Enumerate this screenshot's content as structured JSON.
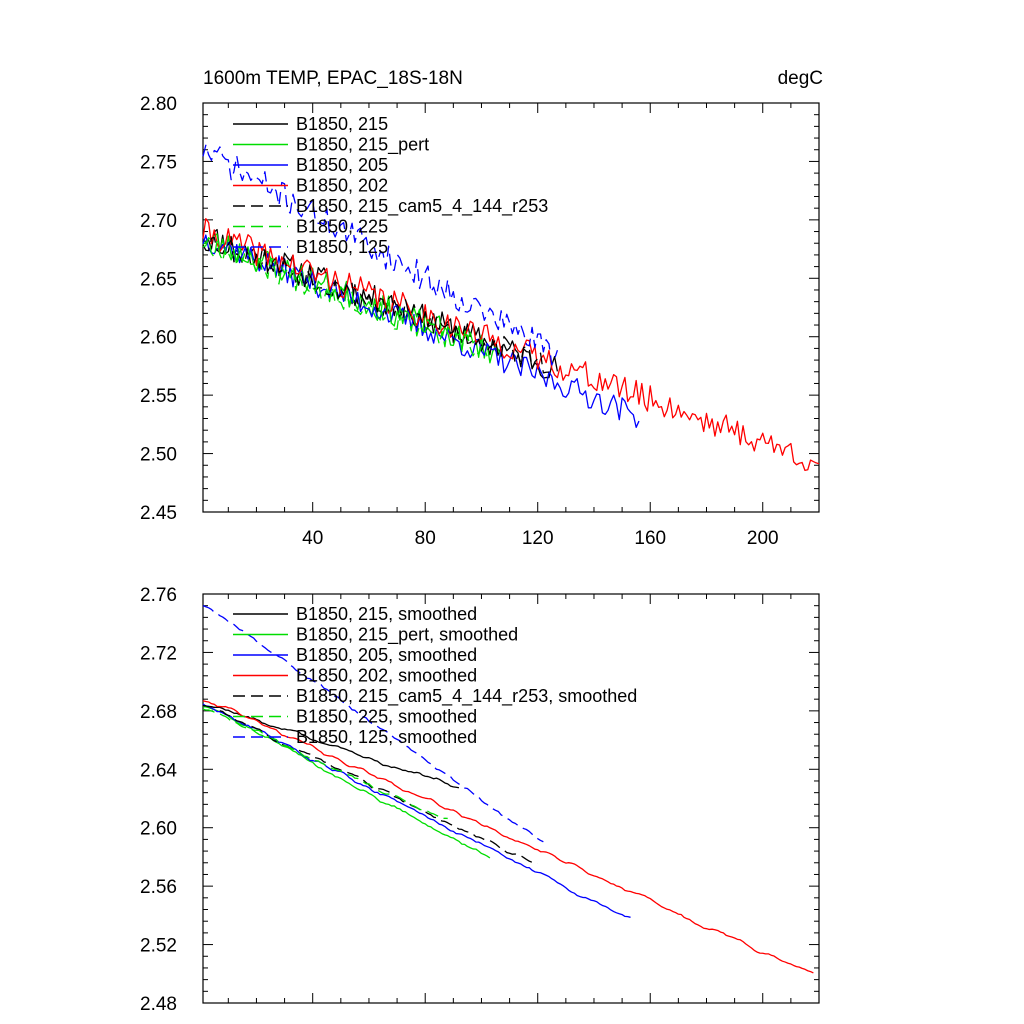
{
  "chart_data": [
    {
      "type": "line",
      "title": "1600m TEMP, EPAC_18S-18N",
      "units": "degC",
      "xlabel": "",
      "ylabel": "",
      "xlim": [
        1,
        220
      ],
      "ylim": [
        2.45,
        2.8
      ],
      "x_ticks": [
        "40",
        "80",
        "120",
        "160",
        "200"
      ],
      "y_ticks": [
        "2.45",
        "2.50",
        "2.55",
        "2.60",
        "2.65",
        "2.70",
        "2.75",
        "2.80"
      ],
      "legend_position": "top-left",
      "series": [
        {
          "name": "B1850, 215",
          "color": "#000000",
          "dash": "solid",
          "start": 2.688,
          "end": 2.572,
          "length": 127,
          "noise": 0.012,
          "seed": 11
        },
        {
          "name": "B1850, 215_pert",
          "color": "#00dd00",
          "dash": "solid",
          "start": 2.685,
          "end": 2.585,
          "length": 107,
          "noise": 0.012,
          "seed": 23
        },
        {
          "name": "B1850, 205",
          "color": "#0000ff",
          "dash": "solid",
          "start": 2.685,
          "end": 2.532,
          "length": 156,
          "noise": 0.011,
          "seed": 37
        },
        {
          "name": "B1850, 202",
          "color": "#ff0000",
          "dash": "solid",
          "start": 2.69,
          "end": 2.492,
          "length": 220,
          "noise": 0.012,
          "seed": 41
        },
        {
          "name": "B1850, 215_cam5_4_144_r253",
          "color": "#000000",
          "dash": "dashed",
          "start": 2.684,
          "end": 2.576,
          "length": 124,
          "noise": 0.011,
          "seed": 53
        },
        {
          "name": "B1850, 225",
          "color": "#00dd00",
          "dash": "dashed",
          "start": 2.682,
          "end": 2.585,
          "length": 102,
          "noise": 0.011,
          "seed": 67
        },
        {
          "name": "B1850, 125",
          "color": "#0000ff",
          "dash": "dashed",
          "start": 2.76,
          "end": 2.585,
          "length": 127,
          "noise": 0.012,
          "seed": 71
        }
      ]
    },
    {
      "type": "line",
      "title": "",
      "xlabel": "",
      "ylabel": "",
      "xlim": [
        1,
        220
      ],
      "ylim": [
        2.48,
        2.76
      ],
      "y_ticks": [
        "2.48",
        "2.52",
        "2.56",
        "2.60",
        "2.64",
        "2.68",
        "2.72",
        "2.76"
      ],
      "legend_position": "top-left",
      "series": [
        {
          "name": "B1850, 215, smoothed",
          "color": "#000000",
          "dash": "solid",
          "start": 2.686,
          "end": 2.627,
          "length": 92,
          "noise": 0.003,
          "seed": 12
        },
        {
          "name": "B1850, 215_pert, smoothed",
          "color": "#00dd00",
          "dash": "solid",
          "start": 2.685,
          "end": 2.579,
          "length": 103,
          "noise": 0.003,
          "seed": 24
        },
        {
          "name": "B1850, 205, smoothed",
          "color": "#0000ff",
          "dash": "solid",
          "start": 2.685,
          "end": 2.537,
          "length": 153,
          "noise": 0.003,
          "seed": 38
        },
        {
          "name": "B1850, 202, smoothed",
          "color": "#ff0000",
          "dash": "solid",
          "start": 2.689,
          "end": 2.499,
          "length": 218,
          "noise": 0.003,
          "seed": 42
        },
        {
          "name": "B1850, 215_cam5_4_144_r253, smoothed",
          "color": "#000000",
          "dash": "dashed",
          "start": 2.685,
          "end": 2.574,
          "length": 120,
          "noise": 0.003,
          "seed": 54
        },
        {
          "name": "B1850, 225, smoothed",
          "color": "#00dd00",
          "dash": "dashed",
          "start": 2.683,
          "end": 2.604,
          "length": 88,
          "noise": 0.003,
          "seed": 68
        },
        {
          "name": "B1850, 125, smoothed",
          "color": "#0000ff",
          "dash": "dashed",
          "start": 2.754,
          "end": 2.589,
          "length": 122,
          "noise": 0.003,
          "seed": 72
        }
      ]
    }
  ]
}
